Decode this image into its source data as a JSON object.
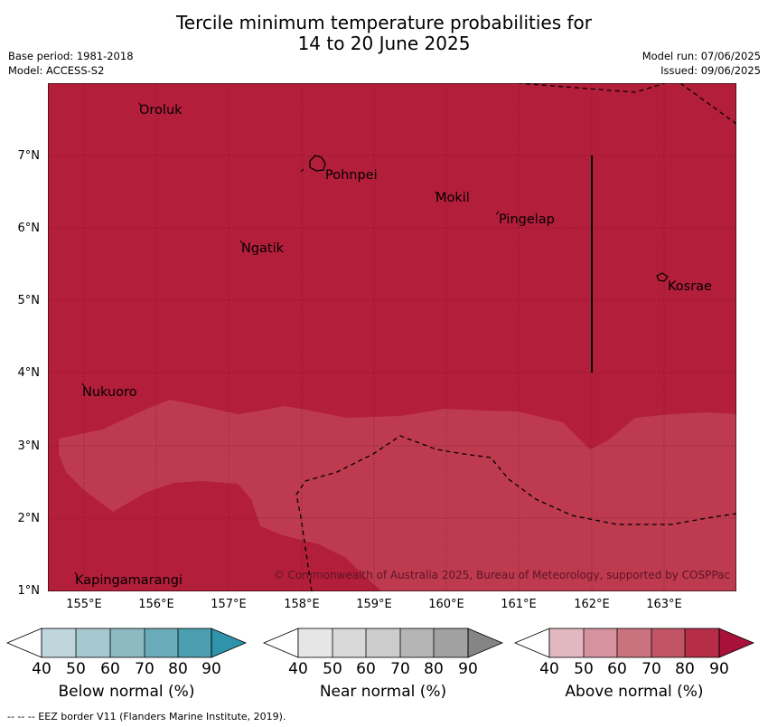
{
  "title_line1": "Tercile minimum temperature probabilities for",
  "title_line2": "14 to 20 June 2025",
  "meta": {
    "base_period": "Base period: 1981-2018",
    "model": "Model: ACCESS-S2",
    "model_run": "Model run: 07/06/2025",
    "issued": "Issued: 09/06/2025"
  },
  "map": {
    "lat_ticks": [
      "7°N",
      "6°N",
      "5°N",
      "4°N",
      "3°N",
      "2°N",
      "1°N"
    ],
    "lon_ticks": [
      "155°E",
      "156°E",
      "157°E",
      "158°E",
      "159°E",
      "160°E",
      "161°E",
      "162°E",
      "163°E"
    ],
    "places": [
      "Oroluk",
      "Pohnpei",
      "Mokil",
      "Pingelap",
      "Ngatik",
      "Kosrae",
      "Nukuoro",
      "Kapingamarangi"
    ],
    "copyright": "© Commonwealth of Australia 2025, Bureau of Meteorology, supported by COSPPac",
    "colors": {
      "above_80": "#b31e3a",
      "above_70": "#bd3a4f"
    }
  },
  "colorbars": [
    {
      "label": "Below normal (%)",
      "ticks": [
        "40",
        "50",
        "60",
        "70",
        "80",
        "90"
      ],
      "colors": [
        "#ffffff",
        "#bfd6dc",
        "#a6c8cf",
        "#8cb9c2",
        "#6aacb9",
        "#4b9fb1",
        "#2f93a9"
      ]
    },
    {
      "label": "Near normal (%)",
      "ticks": [
        "40",
        "50",
        "60",
        "70",
        "80",
        "90"
      ],
      "colors": [
        "#ffffff",
        "#e6e6e6",
        "#d9d9d9",
        "#cccccc",
        "#b5b5b5",
        "#a1a1a1",
        "#858585"
      ]
    },
    {
      "label": "Above normal (%)",
      "ticks": [
        "40",
        "50",
        "60",
        "70",
        "80",
        "90"
      ],
      "colors": [
        "#ffffff",
        "#e2b8c0",
        "#d6929e",
        "#ca737f",
        "#c15565",
        "#b52d47",
        "#a8123a"
      ]
    }
  ],
  "eez_note": "--  --  -- EEZ border V11 (Flanders Marine Institute, 2019)."
}
